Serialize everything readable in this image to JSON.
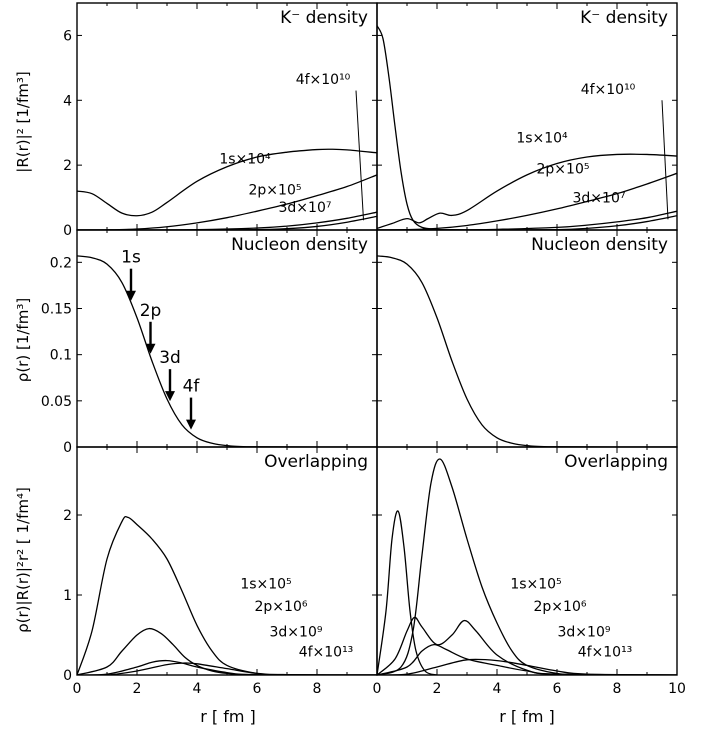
{
  "chart_data": [
    {
      "type": "line",
      "title": "K⁻ density",
      "ylabel": "|R(r)|² [1/fm³]",
      "xlim": [
        0,
        10
      ],
      "ylim": [
        0,
        7
      ],
      "yticks": [
        "0",
        "2",
        "4",
        "6"
      ],
      "series": [
        {
          "name": "1s×10⁴",
          "x": [
            0,
            0.5,
            1,
            1.5,
            2,
            2.5,
            3,
            4,
            5,
            6,
            7,
            8,
            8.5,
            9,
            10
          ],
          "y": [
            1.2,
            1.12,
            0.82,
            0.52,
            0.44,
            0.55,
            0.85,
            1.5,
            1.95,
            2.25,
            2.4,
            2.48,
            2.49,
            2.47,
            2.38
          ]
        },
        {
          "name": "2p×10⁵",
          "x": [
            0,
            1,
            2,
            3,
            4,
            5,
            6,
            7,
            8,
            9,
            10
          ],
          "y": [
            0,
            0.005,
            0.03,
            0.1,
            0.22,
            0.38,
            0.58,
            0.8,
            1.06,
            1.34,
            1.7
          ]
        },
        {
          "name": "3d×10⁷",
          "x": [
            0,
            2,
            4,
            6,
            7,
            8,
            9,
            10
          ],
          "y": [
            0,
            0,
            0.01,
            0.06,
            0.12,
            0.22,
            0.36,
            0.55
          ]
        },
        {
          "name": "4f×10¹⁰",
          "x": [
            0,
            4,
            6,
            7,
            8,
            9,
            10
          ],
          "y": [
            0,
            0,
            0.01,
            0.04,
            0.11,
            0.24,
            0.42
          ]
        }
      ]
    },
    {
      "type": "line",
      "title": "K⁻ density",
      "xlim": [
        0,
        10
      ],
      "ylim": [
        0,
        7
      ],
      "series": [
        {
          "name": "K⁻",
          "x": [
            0,
            0.2,
            0.4,
            0.6,
            0.8,
            1.0,
            1.2,
            1.5,
            2.0,
            2.5,
            3.0
          ],
          "y": [
            6.3,
            5.9,
            4.7,
            3.2,
            1.8,
            0.8,
            0.3,
            0.08,
            0.02,
            0.01,
            0
          ]
        },
        {
          "name": "1s×10⁴",
          "x": [
            0,
            0.5,
            1,
            1.4,
            1.7,
            2.1,
            2.5,
            3,
            4,
            5,
            6,
            7,
            8,
            9,
            10
          ],
          "y": [
            0.05,
            0.2,
            0.35,
            0.22,
            0.35,
            0.52,
            0.45,
            0.6,
            1.2,
            1.7,
            2.05,
            2.25,
            2.33,
            2.33,
            2.28
          ]
        },
        {
          "name": "2p×10⁵",
          "x": [
            0,
            1,
            2,
            3,
            4,
            5,
            6,
            7,
            8,
            9,
            10
          ],
          "y": [
            0,
            0.01,
            0.05,
            0.14,
            0.28,
            0.45,
            0.65,
            0.88,
            1.12,
            1.42,
            1.75
          ]
        },
        {
          "name": "3d×10⁷",
          "x": [
            0,
            2,
            4,
            6,
            7,
            8,
            9,
            10
          ],
          "y": [
            0,
            0,
            0.02,
            0.08,
            0.15,
            0.25,
            0.38,
            0.58
          ]
        },
        {
          "name": "4f×10¹⁰",
          "x": [
            0,
            4,
            6,
            7,
            8,
            9,
            10
          ],
          "y": [
            0,
            0,
            0.01,
            0.05,
            0.13,
            0.26,
            0.44
          ]
        }
      ]
    },
    {
      "type": "line",
      "title": "Nucleon density",
      "ylabel": "ρ(r) [1/fm³]",
      "xlim": [
        0,
        10
      ],
      "ylim": [
        0,
        0.235
      ],
      "yticks": [
        "0",
        "0.05",
        "0.1",
        "0.15",
        "0.2"
      ],
      "annotations": [
        {
          "label": "1s",
          "x": 1.8
        },
        {
          "label": "2p",
          "x": 2.45
        },
        {
          "label": "3d",
          "x": 3.1
        },
        {
          "label": "4f",
          "x": 3.8
        }
      ],
      "series": [
        {
          "name": "ρ(r)",
          "x": [
            0,
            0.5,
            1,
            1.5,
            2,
            2.5,
            3,
            3.5,
            4,
            4.5,
            5,
            6,
            10
          ],
          "y": [
            0.207,
            0.205,
            0.198,
            0.178,
            0.14,
            0.093,
            0.052,
            0.024,
            0.01,
            0.004,
            0.0015,
            0.0002,
            0
          ]
        }
      ]
    },
    {
      "type": "line",
      "title": "Nucleon density",
      "xlim": [
        0,
        10
      ],
      "ylim": [
        0,
        0.235
      ],
      "series": [
        {
          "name": "ρ(r)",
          "x": [
            0,
            0.5,
            1,
            1.5,
            2,
            2.5,
            3,
            3.5,
            4,
            4.5,
            5,
            6,
            10
          ],
          "y": [
            0.207,
            0.205,
            0.198,
            0.178,
            0.14,
            0.093,
            0.052,
            0.024,
            0.01,
            0.004,
            0.0015,
            0.0002,
            0
          ]
        }
      ]
    },
    {
      "type": "line",
      "title": "Overlapping",
      "ylabel": "ρ(r)|R(r)|²r² [ 1/fm⁴]",
      "xlabel": "r [ fm ]",
      "xlim": [
        0,
        10
      ],
      "ylim": [
        0,
        2.85
      ],
      "xticks": [
        "0",
        "2",
        "4",
        "6",
        "8",
        "10"
      ],
      "yticks": [
        "0",
        "1",
        "2"
      ],
      "series": [
        {
          "name": "1s×10⁵",
          "x": [
            0,
            0.5,
            1,
            1.5,
            1.7,
            2,
            2.5,
            3,
            3.5,
            4,
            4.5,
            5,
            6,
            7,
            10
          ],
          "y": [
            0,
            0.55,
            1.45,
            1.92,
            1.97,
            1.88,
            1.7,
            1.45,
            1.05,
            0.62,
            0.3,
            0.12,
            0.02,
            0,
            0
          ]
        },
        {
          "name": "2p×10⁶",
          "x": [
            0,
            1,
            1.5,
            2,
            2.4,
            2.8,
            3.2,
            3.6,
            4,
            4.5,
            5,
            6,
            10
          ],
          "y": [
            0,
            0.1,
            0.3,
            0.5,
            0.58,
            0.52,
            0.38,
            0.22,
            0.12,
            0.05,
            0.02,
            0,
            0
          ]
        },
        {
          "name": "3d×10⁹",
          "x": [
            0,
            1,
            2,
            2.5,
            3,
            3.5,
            4,
            5,
            6,
            10
          ],
          "y": [
            0,
            0.01,
            0.1,
            0.16,
            0.18,
            0.15,
            0.1,
            0.03,
            0.005,
            0
          ]
        },
        {
          "name": "4f×10¹³",
          "x": [
            0,
            1,
            2,
            3,
            3.6,
            4,
            5,
            6,
            7,
            10
          ],
          "y": [
            0,
            0,
            0.05,
            0.13,
            0.15,
            0.14,
            0.08,
            0.02,
            0.005,
            0
          ]
        }
      ]
    },
    {
      "type": "line",
      "title": "Overlapping",
      "xlabel": "r [ fm ]",
      "xlim": [
        0,
        10
      ],
      "ylim": [
        0,
        2.85
      ],
      "xticks": [
        "0",
        "2",
        "4",
        "6",
        "8",
        "10"
      ],
      "series": [
        {
          "name": "K⁻",
          "x": [
            0,
            0.3,
            0.5,
            0.7,
            0.9,
            1.1,
            1.3,
            1.6,
            2.0
          ],
          "y": [
            0,
            0.8,
            1.7,
            2.05,
            1.6,
            0.8,
            0.3,
            0.05,
            0
          ]
        },
        {
          "name": "1s×10⁵",
          "x": [
            0,
            0.8,
            1.2,
            1.5,
            1.8,
            2.1,
            2.5,
            3,
            3.5,
            4,
            4.5,
            5,
            6,
            7,
            10
          ],
          "y": [
            0,
            0.1,
            0.55,
            1.5,
            2.4,
            2.7,
            2.35,
            1.7,
            1.1,
            0.65,
            0.3,
            0.12,
            0.02,
            0,
            0
          ]
        },
        {
          "name": "2p×10⁶",
          "x": [
            0,
            0.6,
            1,
            1.25,
            1.5,
            2,
            2.5,
            2.9,
            3.3,
            4,
            5,
            6,
            10
          ],
          "y": [
            0,
            0.2,
            0.55,
            0.72,
            0.6,
            0.38,
            0.5,
            0.68,
            0.55,
            0.25,
            0.06,
            0.01,
            0
          ]
        },
        {
          "name": "3d×10⁹",
          "x": [
            0,
            1,
            1.5,
            1.9,
            2.3,
            3,
            4,
            5,
            6,
            10
          ],
          "y": [
            0,
            0.1,
            0.3,
            0.38,
            0.32,
            0.2,
            0.12,
            0.05,
            0.01,
            0
          ]
        },
        {
          "name": "4f×10¹³",
          "x": [
            0,
            1,
            2,
            3,
            4,
            5,
            6,
            7,
            10
          ],
          "y": [
            0,
            0.01,
            0.1,
            0.19,
            0.18,
            0.12,
            0.05,
            0.01,
            0
          ]
        }
      ]
    }
  ]
}
